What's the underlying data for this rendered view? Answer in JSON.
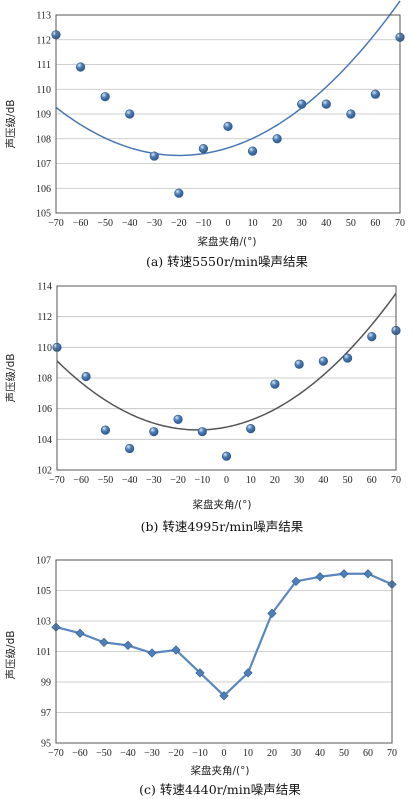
{
  "chart_data": [
    {
      "type": "scatter",
      "xlabel": "桨盘夹角/(°)",
      "ylabel": "声压级/dB",
      "caption": "(a) 转速5550r/min噪声结果",
      "xlim": [
        -70,
        70
      ],
      "ylim": [
        105,
        113
      ],
      "xticks": [
        -70,
        -60,
        -50,
        -40,
        -30,
        -20,
        -10,
        0,
        10,
        20,
        30,
        40,
        50,
        60,
        70
      ],
      "yticks": [
        105,
        106,
        107,
        108,
        109,
        110,
        111,
        112,
        113
      ],
      "grid": true,
      "x": [
        -70,
        -60,
        -50,
        -40,
        -30,
        -20,
        -10,
        0,
        10,
        20,
        30,
        40,
        50,
        60,
        70
      ],
      "y": [
        112.2,
        110.9,
        109.7,
        109.0,
        107.3,
        105.8,
        107.6,
        108.5,
        107.5,
        108.0,
        109.4,
        109.4,
        109.0,
        109.8,
        112.1
      ],
      "trend": {
        "type": "poly2",
        "a": 0.000773,
        "b": 0.0307,
        "c": 107.63
      }
    },
    {
      "type": "scatter",
      "xlabel": "桨盘夹角/(°)",
      "ylabel": "声压级/dB",
      "caption": "(b) 转速4995r/min噪声结果",
      "xlim": [
        -70,
        70
      ],
      "ylim": [
        102,
        114
      ],
      "xticks": [
        -70,
        -60,
        -50,
        -40,
        -30,
        -20,
        -10,
        0,
        10,
        20,
        30,
        40,
        50,
        60,
        70
      ],
      "yticks": [
        102,
        104,
        106,
        108,
        110,
        112,
        114
      ],
      "grid": true,
      "x": [
        -70,
        -58,
        -50,
        -40,
        -30,
        -20,
        -10,
        0,
        10,
        20,
        30,
        40,
        50,
        60,
        70
      ],
      "y": [
        110.0,
        108.1,
        104.6,
        103.4,
        104.5,
        105.3,
        104.5,
        102.9,
        104.7,
        107.6,
        108.9,
        109.1,
        109.3,
        110.7,
        111.1
      ],
      "trend": {
        "type": "poly2",
        "a": 0.00133,
        "b": 0.0315,
        "c": 104.8
      }
    },
    {
      "type": "line",
      "xlabel": "桨盘夹角/(°)",
      "ylabel": "声压级/dB",
      "caption": "(c) 转速4440r/min噪声结果",
      "xlim": [
        -70,
        70
      ],
      "ylim": [
        95,
        107
      ],
      "xticks": [
        -70,
        -60,
        -50,
        -40,
        -30,
        -20,
        -10,
        0,
        10,
        20,
        30,
        40,
        50,
        60,
        70
      ],
      "yticks": [
        95,
        97,
        99,
        101,
        103,
        105,
        107
      ],
      "grid": true,
      "x": [
        -70,
        -60,
        -50,
        -40,
        -30,
        -20,
        -10,
        0,
        10,
        20,
        30,
        40,
        50,
        60,
        70
      ],
      "y": [
        102.6,
        102.2,
        101.6,
        101.4,
        100.9,
        101.1,
        99.6,
        98.1,
        99.6,
        103.5,
        105.6,
        105.9,
        106.1,
        106.1,
        105.4
      ]
    }
  ],
  "colors": {
    "marker": "#4f7fb8",
    "marker_edge": "#2d5a8f",
    "trend_a": "#4a78b6",
    "trend_b": "#555555",
    "line_c": "#5b87bf"
  }
}
